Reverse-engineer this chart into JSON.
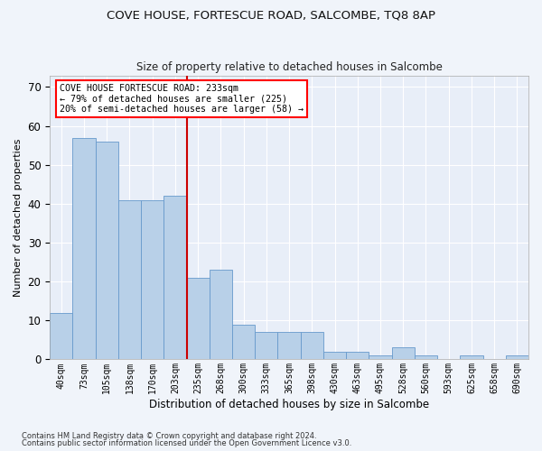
{
  "title": "COVE HOUSE, FORTESCUE ROAD, SALCOMBE, TQ8 8AP",
  "subtitle": "Size of property relative to detached houses in Salcombe",
  "xlabel": "Distribution of detached houses by size in Salcombe",
  "ylabel": "Number of detached properties",
  "bar_color": "#b8d0e8",
  "bar_edge_color": "#6699cc",
  "vline_color": "#cc0000",
  "vline_index": 6,
  "categories": [
    "40sqm",
    "73sqm",
    "105sqm",
    "138sqm",
    "170sqm",
    "203sqm",
    "235sqm",
    "268sqm",
    "300sqm",
    "333sqm",
    "365sqm",
    "398sqm",
    "430sqm",
    "463sqm",
    "495sqm",
    "528sqm",
    "560sqm",
    "593sqm",
    "625sqm",
    "658sqm",
    "690sqm"
  ],
  "values": [
    12,
    57,
    56,
    41,
    41,
    42,
    21,
    23,
    9,
    7,
    7,
    7,
    2,
    2,
    1,
    3,
    1,
    0,
    1,
    0,
    1
  ],
  "ylim": [
    0,
    73
  ],
  "yticks": [
    0,
    10,
    20,
    30,
    40,
    50,
    60,
    70
  ],
  "annotation_title": "COVE HOUSE FORTESCUE ROAD: 233sqm",
  "annotation_line1": "← 79% of detached houses are smaller (225)",
  "annotation_line2": "20% of semi-detached houses are larger (58) →",
  "footer_line1": "Contains HM Land Registry data © Crown copyright and database right 2024.",
  "footer_line2": "Contains public sector information licensed under the Open Government Licence v3.0.",
  "background_color": "#f0f4fa",
  "plot_bg_color": "#e8eef8"
}
